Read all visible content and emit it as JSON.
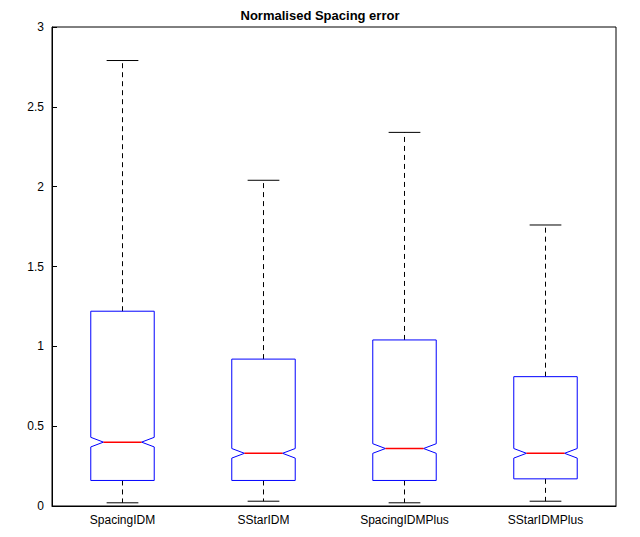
{
  "chart_data": {
    "type": "boxplot",
    "title": "Normalised Spacing error",
    "categories": [
      "SpacingIDM",
      "SStarIDM",
      "SpacingIDMPlus",
      "SStarIDMPlus"
    ],
    "min": [
      0.02,
      0.03,
      0.02,
      0.03
    ],
    "q1": [
      0.16,
      0.16,
      0.16,
      0.17
    ],
    "notch_low": [
      0.37,
      0.3,
      0.33,
      0.3
    ],
    "median": [
      0.4,
      0.33,
      0.36,
      0.33
    ],
    "notch_high": [
      0.43,
      0.36,
      0.39,
      0.36
    ],
    "q3": [
      1.22,
      0.92,
      1.04,
      0.81
    ],
    "max": [
      2.79,
      2.04,
      2.34,
      1.76
    ],
    "color": "#0000ff",
    "ylim": [
      0,
      3
    ],
    "yticks": [
      0,
      0.5,
      1,
      1.5,
      2,
      2.5,
      3
    ],
    "grid": false
  }
}
